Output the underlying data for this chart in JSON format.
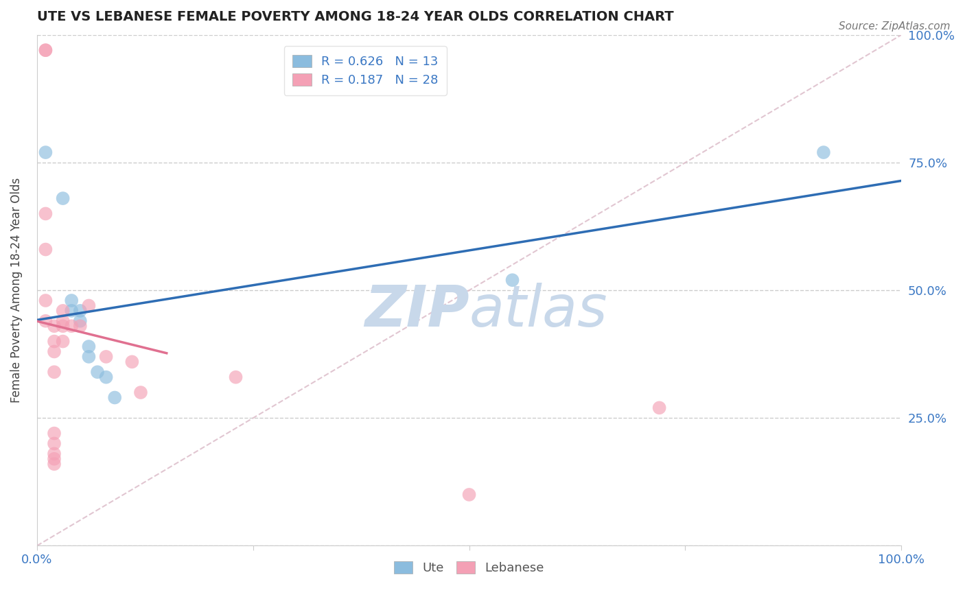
{
  "title": "UTE VS LEBANESE FEMALE POVERTY AMONG 18-24 YEAR OLDS CORRELATION CHART",
  "source": "Source: ZipAtlas.com",
  "ylabel": "Female Poverty Among 18-24 Year Olds",
  "xlim": [
    0,
    1
  ],
  "ylim": [
    0,
    1
  ],
  "x_tick_positions": [
    0,
    0.25,
    0.5,
    0.75,
    1.0
  ],
  "x_tick_labels": [
    "0.0%",
    "",
    "",
    "",
    "100.0%"
  ],
  "y_tick_positions": [
    0,
    0.25,
    0.5,
    0.75,
    1.0
  ],
  "y_tick_labels_right": [
    "",
    "25.0%",
    "50.0%",
    "75.0%",
    "100.0%"
  ],
  "ute_R": 0.626,
  "ute_N": 13,
  "lebanese_R": 0.187,
  "lebanese_N": 28,
  "ute_color": "#8BBCDE",
  "lebanese_color": "#F4A0B5",
  "ute_line_color": "#2E6DB4",
  "lebanese_line_color": "#E07090",
  "diagonal_color": "#DEC0CC",
  "watermark_color": "#C8D8EA",
  "ute_points": [
    [
      0.01,
      0.77
    ],
    [
      0.03,
      0.68
    ],
    [
      0.04,
      0.46
    ],
    [
      0.04,
      0.48
    ],
    [
      0.05,
      0.44
    ],
    [
      0.05,
      0.46
    ],
    [
      0.06,
      0.37
    ],
    [
      0.06,
      0.39
    ],
    [
      0.07,
      0.34
    ],
    [
      0.08,
      0.33
    ],
    [
      0.09,
      0.29
    ],
    [
      0.55,
      0.52
    ],
    [
      0.91,
      0.77
    ]
  ],
  "lebanese_points": [
    [
      0.01,
      0.97
    ],
    [
      0.01,
      0.97
    ],
    [
      0.01,
      0.65
    ],
    [
      0.01,
      0.58
    ],
    [
      0.01,
      0.48
    ],
    [
      0.01,
      0.44
    ],
    [
      0.02,
      0.43
    ],
    [
      0.02,
      0.4
    ],
    [
      0.02,
      0.38
    ],
    [
      0.02,
      0.34
    ],
    [
      0.02,
      0.22
    ],
    [
      0.02,
      0.2
    ],
    [
      0.02,
      0.18
    ],
    [
      0.02,
      0.17
    ],
    [
      0.02,
      0.16
    ],
    [
      0.03,
      0.46
    ],
    [
      0.03,
      0.44
    ],
    [
      0.03,
      0.43
    ],
    [
      0.03,
      0.4
    ],
    [
      0.04,
      0.43
    ],
    [
      0.05,
      0.43
    ],
    [
      0.06,
      0.47
    ],
    [
      0.08,
      0.37
    ],
    [
      0.11,
      0.36
    ],
    [
      0.12,
      0.3
    ],
    [
      0.23,
      0.33
    ],
    [
      0.5,
      0.1
    ],
    [
      0.72,
      0.27
    ]
  ]
}
